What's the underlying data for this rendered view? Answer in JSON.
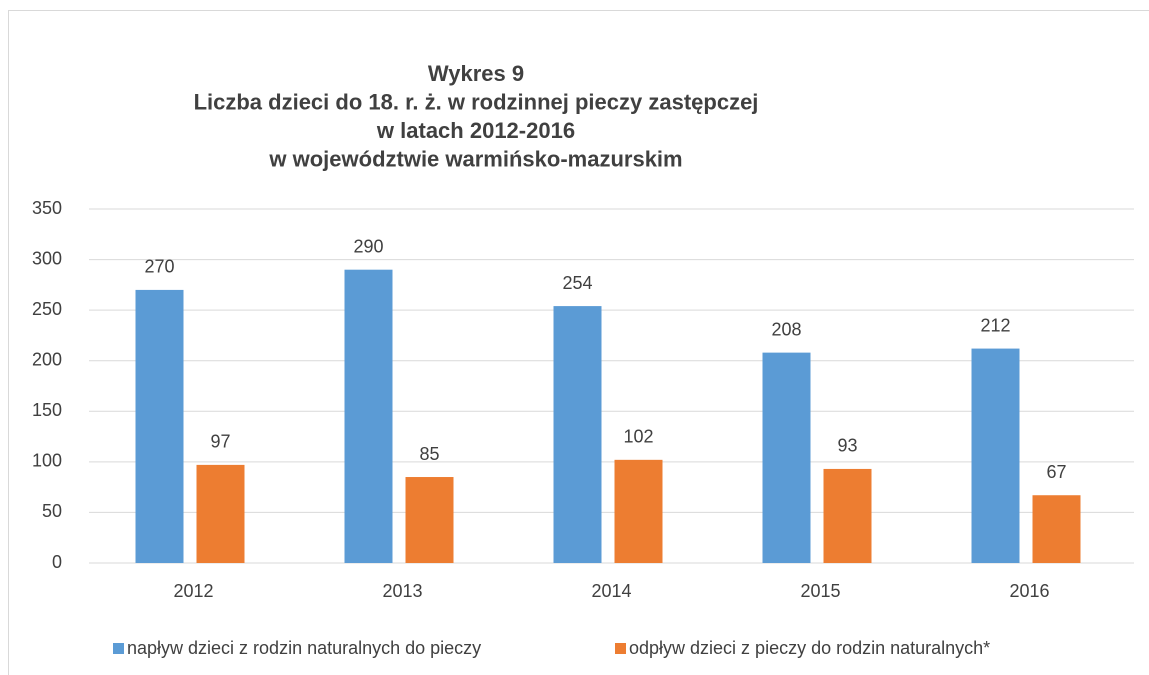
{
  "chart_data": {
    "type": "bar",
    "title": [
      "Wykres 9",
      "Liczba dzieci do 18. r. ż. w rodzinnej pieczy zastępczej",
      "w latach 2012-2016",
      "w województwie warmińsko-mazurskim"
    ],
    "categories": [
      "2012",
      "2013",
      "2014",
      "2015",
      "2016"
    ],
    "series": [
      {
        "name": "napływ dzieci z rodzin naturalnych do pieczy",
        "color": "#5b9bd5",
        "values": [
          270,
          290,
          254,
          208,
          212
        ]
      },
      {
        "name": "odpływ dzieci z pieczy do rodzin naturalnych*",
        "color": "#ed7d31",
        "values": [
          97,
          85,
          102,
          93,
          67
        ]
      }
    ],
    "ylim": [
      0,
      350
    ],
    "yticks": [
      0,
      50,
      100,
      150,
      200,
      250,
      300,
      350
    ],
    "grid": true,
    "legend": "bottom"
  }
}
